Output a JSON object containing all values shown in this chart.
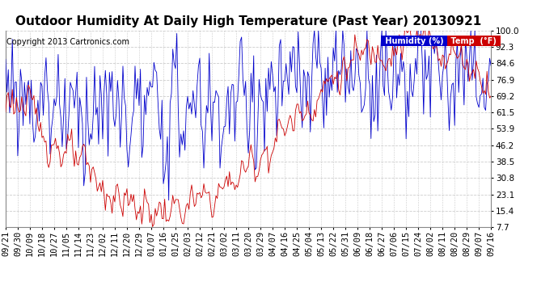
{
  "title": "Outdoor Humidity At Daily High Temperature (Past Year) 20130921",
  "copyright": "Copyright 2013 Cartronics.com",
  "bg_color": "#ffffff",
  "plot_bg_color": "#ffffff",
  "humidity_color": "#0000cc",
  "temp_color": "#cc0000",
  "legend_humidity_bg": "#0000cc",
  "legend_temp_bg": "#cc0000",
  "legend_humidity_text": "Humidity (%)",
  "legend_temp_text": "Temp  (°F)",
  "yticks": [
    7.7,
    15.4,
    23.1,
    30.8,
    38.5,
    46.2,
    53.9,
    61.5,
    69.2,
    76.9,
    84.6,
    92.3,
    100.0
  ],
  "xtick_labels": [
    "09/21",
    "09/30",
    "10/09",
    "10/18",
    "10/27",
    "11/05",
    "11/14",
    "11/23",
    "12/02",
    "12/11",
    "12/20",
    "12/29",
    "01/07",
    "01/16",
    "01/25",
    "02/03",
    "02/12",
    "02/21",
    "03/02",
    "03/11",
    "03/20",
    "03/29",
    "04/07",
    "04/16",
    "04/25",
    "05/04",
    "05/13",
    "05/22",
    "05/31",
    "06/09",
    "06/18",
    "06/27",
    "07/06",
    "07/15",
    "07/24",
    "08/02",
    "08/11",
    "08/20",
    "08/29",
    "09/07",
    "09/16"
  ],
  "ylim": [
    7.7,
    100.0
  ],
  "grid_color": "#cccccc",
  "title_fontsize": 11,
  "tick_fontsize": 7.5,
  "copyright_fontsize": 7
}
